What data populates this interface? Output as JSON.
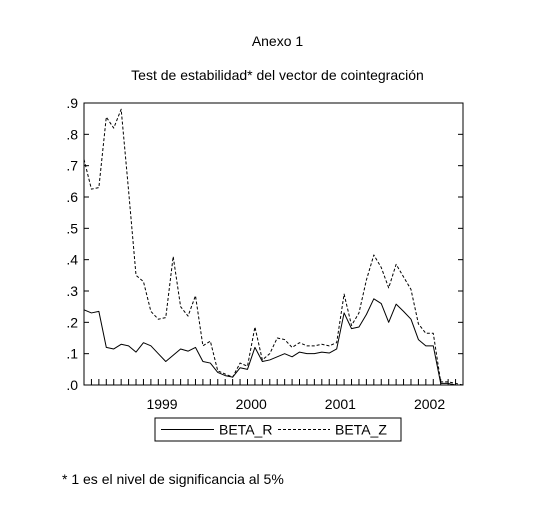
{
  "header": {
    "annex": "Anexo 1",
    "title": "Test de estabilidad* del vector de cointegración"
  },
  "footnote": "* 1 es el nivel de significancia al 5%",
  "chart_data": {
    "type": "line",
    "title": "Test de estabilidad* del vector de cointegración",
    "xlabel": "",
    "ylabel": "",
    "x_start": 1998.625,
    "x_step": 0.0833333,
    "xlim": [
      1998.625,
      2002.875
    ],
    "ylim": [
      0.0,
      0.9
    ],
    "yticks": [
      0.0,
      0.1,
      0.2,
      0.3,
      0.4,
      0.5,
      0.6,
      0.7,
      0.8,
      0.9
    ],
    "ytick_labels": [
      ".0",
      ".1",
      ".2",
      ".3",
      ".4",
      ".5",
      ".6",
      ".7",
      ".8",
      ".9"
    ],
    "xtick_labels": [
      {
        "label": "1999",
        "x": 1999.5
      },
      {
        "label": "2000",
        "x": 2000.5
      },
      {
        "label": "2001",
        "x": 2001.5
      },
      {
        "label": "2002",
        "x": 2002.5
      }
    ],
    "grid": false,
    "legend_position": "bottom",
    "series": [
      {
        "name": "BETA_R",
        "style": "solid",
        "values": [
          0.24,
          0.23,
          0.235,
          0.12,
          0.115,
          0.13,
          0.125,
          0.105,
          0.135,
          0.125,
          0.1,
          0.075,
          0.095,
          0.115,
          0.108,
          0.12,
          0.075,
          0.07,
          0.04,
          0.03,
          0.025,
          0.055,
          0.05,
          0.12,
          0.075,
          0.08,
          0.09,
          0.1,
          0.09,
          0.105,
          0.1,
          0.1,
          0.105,
          0.102,
          0.115,
          0.23,
          0.18,
          0.185,
          0.225,
          0.275,
          0.26,
          0.2,
          0.258,
          0.235,
          0.21,
          0.145,
          0.125,
          0.125,
          0.005,
          0.005,
          0.0,
          0.0
        ]
      },
      {
        "name": "BETA_Z",
        "style": "dashed",
        "values": [
          0.72,
          0.625,
          0.63,
          0.855,
          0.82,
          0.88,
          0.62,
          0.35,
          0.33,
          0.235,
          0.21,
          0.215,
          0.41,
          0.25,
          0.22,
          0.285,
          0.125,
          0.14,
          0.045,
          0.035,
          0.025,
          0.07,
          0.06,
          0.185,
          0.08,
          0.1,
          0.15,
          0.145,
          0.12,
          0.135,
          0.125,
          0.125,
          0.13,
          0.125,
          0.135,
          0.29,
          0.19,
          0.23,
          0.335,
          0.415,
          0.375,
          0.31,
          0.385,
          0.345,
          0.305,
          0.195,
          0.165,
          0.165,
          0.01,
          0.01,
          0.005,
          0.0
        ]
      }
    ]
  }
}
